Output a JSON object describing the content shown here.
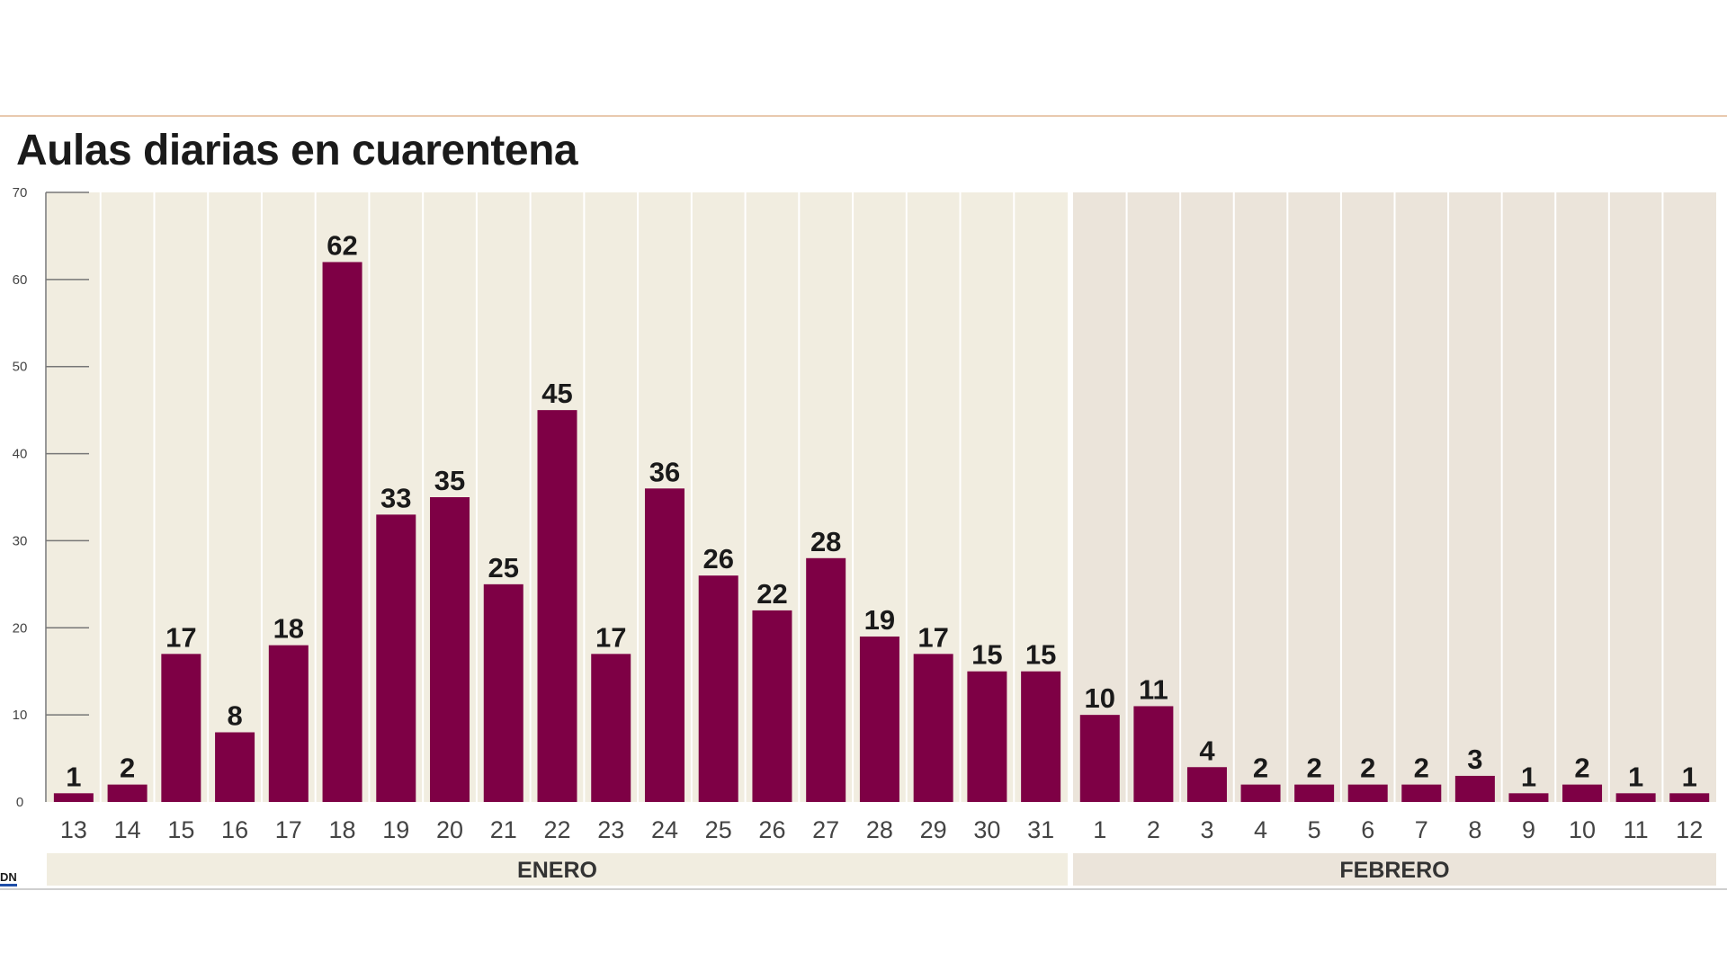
{
  "chart_data": {
    "type": "bar",
    "title": "Aulas diarias en cuarentena",
    "xlabel": "",
    "ylabel": "",
    "ylim": [
      0,
      70
    ],
    "yticks": [
      0,
      10,
      20,
      30,
      40,
      50,
      60,
      70
    ],
    "grid": false,
    "categories": [
      "13",
      "14",
      "15",
      "16",
      "17",
      "18",
      "19",
      "20",
      "21",
      "22",
      "23",
      "24",
      "25",
      "26",
      "27",
      "28",
      "29",
      "30",
      "31",
      "1",
      "2",
      "3",
      "4",
      "5",
      "6",
      "7",
      "8",
      "9",
      "10",
      "11",
      "12"
    ],
    "values": [
      1,
      2,
      17,
      8,
      18,
      62,
      33,
      35,
      25,
      45,
      17,
      36,
      26,
      22,
      28,
      19,
      17,
      15,
      15,
      10,
      11,
      4,
      2,
      2,
      2,
      2,
      3,
      1,
      2,
      1,
      1
    ],
    "months": [
      {
        "label": "ENERO",
        "count": 19
      },
      {
        "label": "FEBRERO",
        "count": 12
      }
    ],
    "colors": {
      "bar": "#7e0045",
      "panel_january": "#f1ede0",
      "panel_february": "#ebe4da"
    }
  },
  "logo": "DN"
}
